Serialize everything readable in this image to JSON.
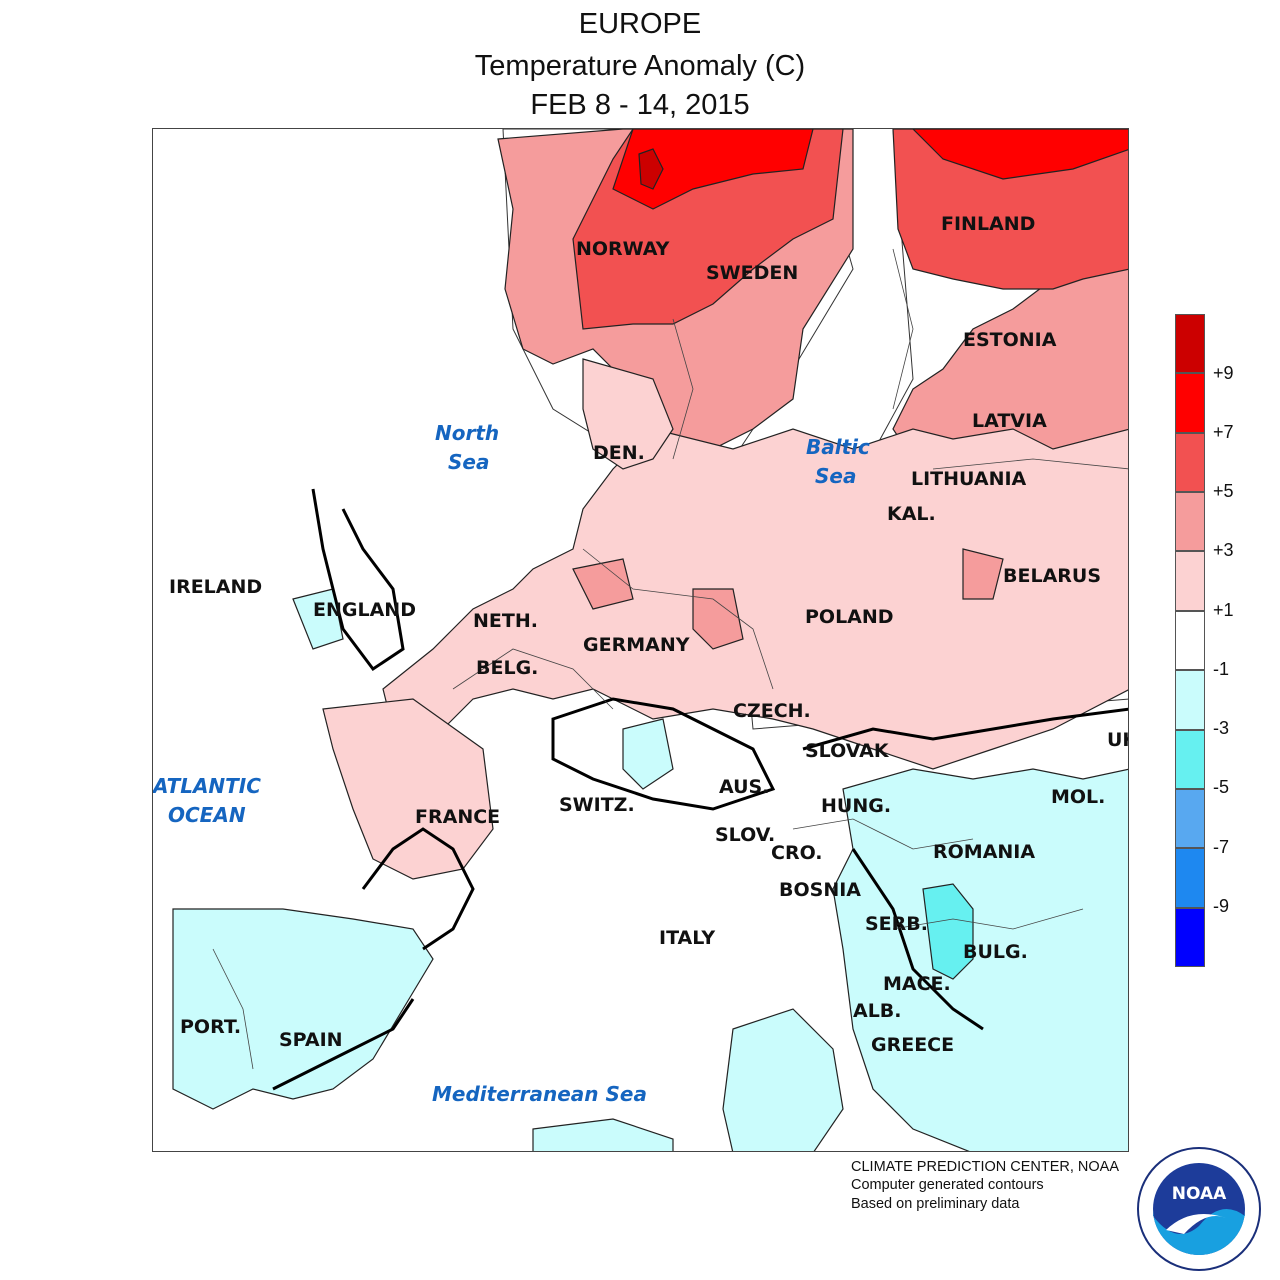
{
  "title": {
    "region": "EUROPE",
    "variable": "Temperature Anomaly (C)",
    "period": "FEB 8 - 14, 2015"
  },
  "map": {
    "countries": [
      "NORWAY",
      "SWEDEN",
      "FINLAND",
      "ESTONIA",
      "LATVIA",
      "LITHUANIA",
      "KAL.",
      "BELARUS",
      "DEN.",
      "POLAND",
      "GERMANY",
      "NETH.",
      "BELG.",
      "IRELAND",
      "ENGLAND",
      "FRANCE",
      "SWITZ.",
      "AUS.",
      "CZECH.",
      "SLOVAK",
      "HUNG.",
      "SLOV.",
      "CRO.",
      "BOSNIA",
      "ROMANIA",
      "MOL.",
      "UK",
      "SERB.",
      "BULG.",
      "MACE.",
      "ALB.",
      "GREECE",
      "ITALY",
      "PORT.",
      "SPAIN"
    ],
    "seas": [
      "North",
      "Sea",
      "Baltic",
      "Sea",
      "ATLANTIC",
      "OCEAN",
      "Mediterranean Sea"
    ]
  },
  "legend": {
    "tick_labels": [
      "+9",
      "+7",
      "+5",
      "+3",
      "+1",
      "-1",
      "-3",
      "-5",
      "-7",
      "-9"
    ],
    "colors": [
      "#cc0000",
      "#ff0000",
      "#f25151",
      "#f59c9c",
      "#fcd2d2",
      "#ffffff",
      "#cafcfc",
      "#66f0f0",
      "#58a8f0",
      "#1e88f0",
      "#0000ff"
    ]
  },
  "credits": {
    "line1": "CLIMATE PREDICTION CENTER, NOAA",
    "line2": "Computer generated contours",
    "line3": "Based on preliminary data"
  },
  "logo": {
    "text": "NOAA"
  }
}
